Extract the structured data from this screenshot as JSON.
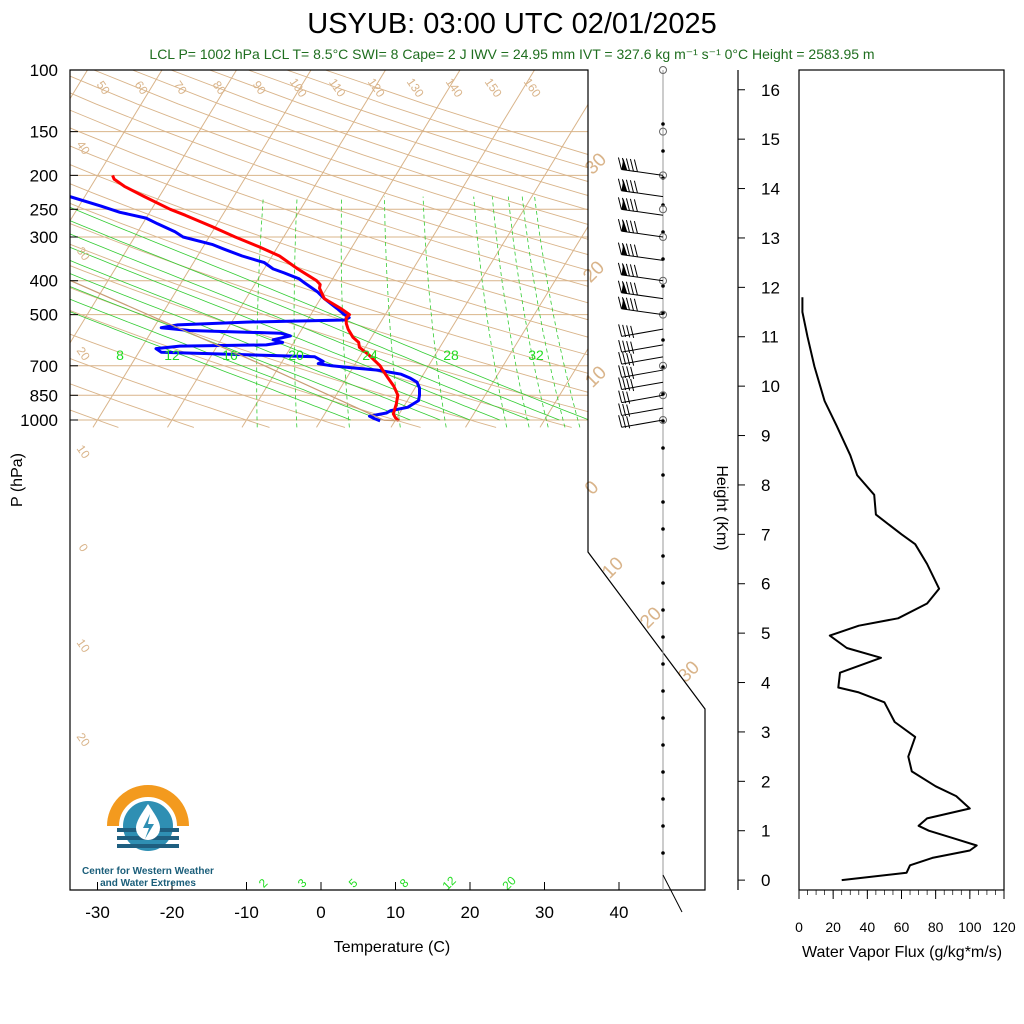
{
  "title": "USYUB: 03:00 UTC 02/01/2025",
  "subtitle": "LCL P= 1002 hPa  LCL T= 8.5°C  SWI= 8  Cape= 2 J  IWV = 24.95 mm  IVT = 327.6 kg m⁻¹ s⁻¹  0°C Height = 2583.95 m",
  "logo": {
    "line1": "Center for Western Weather",
    "line2": "and Water Extremes",
    "icon": "water-drop-logo-icon"
  },
  "colors": {
    "temperature": "#ff0000",
    "dewpoint": "#0000ff",
    "flux": "#000000",
    "isotherm": "#d9b48a",
    "mixing_ratio": "#33cc33",
    "subtitle": "#1f6e1f"
  },
  "chart_data": [
    {
      "type": "skew-t",
      "xlabel": "Temperature (C)",
      "ylabel": "P (hPa)",
      "x_ticks": [
        "-30",
        "-20",
        "-10",
        "0",
        "10",
        "20",
        "30",
        "40"
      ],
      "y_ticks": [
        "100",
        "150",
        "200",
        "250",
        "300",
        "400",
        "500",
        "700",
        "850",
        "1000"
      ],
      "xlim": [
        -33,
        53
      ],
      "ylim": [
        1050,
        100
      ],
      "mixing_ratio_labels_top": [
        "8",
        "12",
        "16",
        "20",
        "24",
        "28",
        "32"
      ],
      "mixing_ratio_labels_bottom": [
        "2",
        "3",
        "5",
        "8",
        "12",
        "20"
      ],
      "isotherm_labels": [
        "30",
        "20",
        "10",
        "0",
        "10",
        "20",
        "30"
      ],
      "dry_adiabat_labels": [
        "50",
        "60",
        "70",
        "80",
        "90",
        "100",
        "110",
        "120",
        "130",
        "140",
        "150",
        "160"
      ],
      "temperature_profile": [
        {
          "p": 1005,
          "t": 10.5
        },
        {
          "p": 985,
          "t": 9.8
        },
        {
          "p": 960,
          "t": 9.2
        },
        {
          "p": 930,
          "t": 9.0
        },
        {
          "p": 900,
          "t": 8.8
        },
        {
          "p": 870,
          "t": 8.5
        },
        {
          "p": 850,
          "t": 8.3
        },
        {
          "p": 800,
          "t": 7.0
        },
        {
          "p": 760,
          "t": 5.6
        },
        {
          "p": 720,
          "t": 4.2
        },
        {
          "p": 700,
          "t": 3.5
        },
        {
          "p": 650,
          "t": 1.0
        },
        {
          "p": 620,
          "t": -0.8
        },
        {
          "p": 600,
          "t": -1.3
        },
        {
          "p": 580,
          "t": -2.5
        },
        {
          "p": 550,
          "t": -3.8
        },
        {
          "p": 530,
          "t": -4.5
        },
        {
          "p": 510,
          "t": -5.0
        },
        {
          "p": 500,
          "t": -4.8
        },
        {
          "p": 480,
          "t": -6.5
        },
        {
          "p": 450,
          "t": -9.5
        },
        {
          "p": 420,
          "t": -11.0
        },
        {
          "p": 410,
          "t": -11.2
        },
        {
          "p": 400,
          "t": -12.0
        },
        {
          "p": 370,
          "t": -15.5
        },
        {
          "p": 340,
          "t": -19.0
        },
        {
          "p": 320,
          "t": -22.5
        },
        {
          "p": 300,
          "t": -26.5
        },
        {
          "p": 280,
          "t": -30.5
        },
        {
          "p": 260,
          "t": -35.0
        },
        {
          "p": 250,
          "t": -37.5
        },
        {
          "p": 230,
          "t": -42.0
        },
        {
          "p": 215,
          "t": -45.5
        },
        {
          "p": 205,
          "t": -47.5
        },
        {
          "p": 200,
          "t": -48.0
        }
      ],
      "dewpoint_profile": [
        {
          "p": 1005,
          "t": 8.0
        },
        {
          "p": 990,
          "t": 7.0
        },
        {
          "p": 975,
          "t": 6.2
        },
        {
          "p": 955,
          "t": 8.2
        },
        {
          "p": 940,
          "t": 8.6
        },
        {
          "p": 920,
          "t": 10.6
        },
        {
          "p": 880,
          "t": 11.5
        },
        {
          "p": 850,
          "t": 11.2
        },
        {
          "p": 810,
          "t": 10.6
        },
        {
          "p": 780,
          "t": 9.8
        },
        {
          "p": 760,
          "t": 8.6
        },
        {
          "p": 740,
          "t": 7.0
        },
        {
          "p": 720,
          "t": 3.5
        },
        {
          "p": 710,
          "t": 0.0
        },
        {
          "p": 700,
          "t": -3.0
        },
        {
          "p": 690,
          "t": -5.0
        },
        {
          "p": 680,
          "t": -4.5
        },
        {
          "p": 660,
          "t": -6.0
        },
        {
          "p": 640,
          "t": -27.0
        },
        {
          "p": 625,
          "t": -28.0
        },
        {
          "p": 615,
          "t": -25.0
        },
        {
          "p": 610,
          "t": -13.5
        },
        {
          "p": 600,
          "t": -11.5
        },
        {
          "p": 590,
          "t": -13.0
        },
        {
          "p": 575,
          "t": -11.0
        },
        {
          "p": 565,
          "t": -12.5
        },
        {
          "p": 555,
          "t": -25.0
        },
        {
          "p": 545,
          "t": -29.0
        },
        {
          "p": 535,
          "t": -27.0
        },
        {
          "p": 525,
          "t": -18.0
        },
        {
          "p": 518,
          "t": -5.0
        },
        {
          "p": 510,
          "t": -4.6
        },
        {
          "p": 500,
          "t": -5.5
        },
        {
          "p": 480,
          "t": -7.0
        },
        {
          "p": 450,
          "t": -9.5
        },
        {
          "p": 430,
          "t": -11.0
        },
        {
          "p": 415,
          "t": -12.5
        },
        {
          "p": 405,
          "t": -13.5
        },
        {
          "p": 395,
          "t": -14.5
        },
        {
          "p": 380,
          "t": -17.0
        },
        {
          "p": 370,
          "t": -18.8
        },
        {
          "p": 355,
          "t": -20.5
        },
        {
          "p": 340,
          "t": -24.0
        },
        {
          "p": 325,
          "t": -27.0
        },
        {
          "p": 315,
          "t": -29.0
        },
        {
          "p": 300,
          "t": -33.5
        },
        {
          "p": 290,
          "t": -35.0
        },
        {
          "p": 275,
          "t": -38.0
        },
        {
          "p": 265,
          "t": -40.0
        },
        {
          "p": 255,
          "t": -44.0
        },
        {
          "p": 245,
          "t": -47.0
        },
        {
          "p": 230,
          "t": -52.0
        },
        {
          "p": 218,
          "t": -56.0
        },
        {
          "p": 210,
          "t": -55.0
        },
        {
          "p": 205,
          "t": -56.0
        },
        {
          "p": 200,
          "t": -58.5
        }
      ],
      "wind_barb_pressures": [
        1000,
        925,
        850,
        780,
        720,
        660,
        610,
        550,
        500,
        450,
        400,
        350,
        300,
        260,
        230,
        200
      ]
    },
    {
      "type": "line",
      "xlabel": "Water Vapor Flux (g/kg*m/s)",
      "ylabel": "Height (Km)",
      "x_ticks": [
        "0",
        "20",
        "40",
        "60",
        "80",
        "100",
        "120"
      ],
      "y_ticks": [
        "0",
        "1",
        "2",
        "3",
        "4",
        "5",
        "6",
        "7",
        "8",
        "9",
        "10",
        "11",
        "12",
        "13",
        "14",
        "15",
        "16"
      ],
      "xlim": [
        0,
        120
      ],
      "ylim": [
        -0.2,
        16.4
      ],
      "points": [
        {
          "x": 25,
          "y": 0.0
        },
        {
          "x": 63,
          "y": 0.15
        },
        {
          "x": 65,
          "y": 0.3
        },
        {
          "x": 78,
          "y": 0.45
        },
        {
          "x": 100,
          "y": 0.6
        },
        {
          "x": 104,
          "y": 0.7
        },
        {
          "x": 90,
          "y": 0.85
        },
        {
          "x": 76,
          "y": 1.0
        },
        {
          "x": 70,
          "y": 1.1
        },
        {
          "x": 75,
          "y": 1.25
        },
        {
          "x": 100,
          "y": 1.45
        },
        {
          "x": 92,
          "y": 1.7
        },
        {
          "x": 80,
          "y": 1.9
        },
        {
          "x": 66,
          "y": 2.2
        },
        {
          "x": 64,
          "y": 2.5
        },
        {
          "x": 68,
          "y": 2.9
        },
        {
          "x": 56,
          "y": 3.2
        },
        {
          "x": 50,
          "y": 3.6
        },
        {
          "x": 35,
          "y": 3.8
        },
        {
          "x": 23,
          "y": 3.9
        },
        {
          "x": 24,
          "y": 4.2
        },
        {
          "x": 48,
          "y": 4.5
        },
        {
          "x": 28,
          "y": 4.7
        },
        {
          "x": 18,
          "y": 4.95
        },
        {
          "x": 35,
          "y": 5.15
        },
        {
          "x": 58,
          "y": 5.3
        },
        {
          "x": 75,
          "y": 5.6
        },
        {
          "x": 82,
          "y": 5.9
        },
        {
          "x": 75,
          "y": 6.4
        },
        {
          "x": 68,
          "y": 6.8
        },
        {
          "x": 60,
          "y": 7.0
        },
        {
          "x": 45,
          "y": 7.4
        },
        {
          "x": 44,
          "y": 7.8
        },
        {
          "x": 34,
          "y": 8.2
        },
        {
          "x": 30,
          "y": 8.6
        },
        {
          "x": 22,
          "y": 9.2
        },
        {
          "x": 15,
          "y": 9.7
        },
        {
          "x": 9,
          "y": 10.4
        },
        {
          "x": 5,
          "y": 11.0
        },
        {
          "x": 2,
          "y": 11.5
        },
        {
          "x": 2,
          "y": 11.8
        }
      ]
    }
  ]
}
